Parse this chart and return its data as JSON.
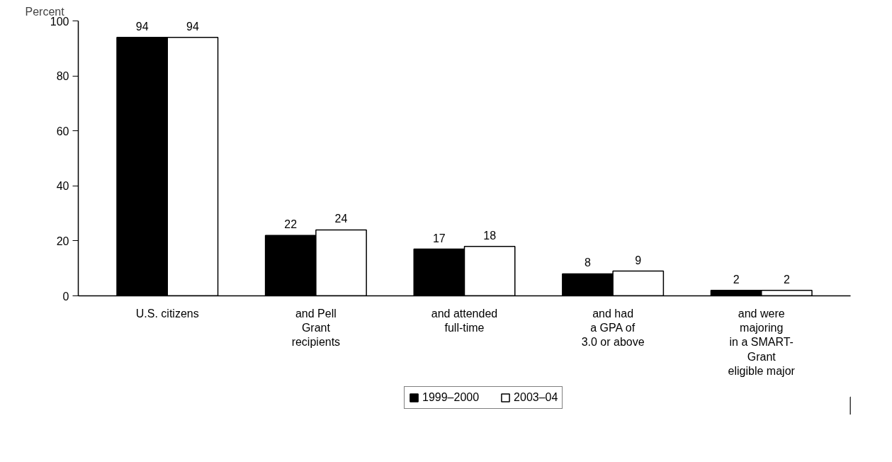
{
  "chart_data": {
    "type": "bar",
    "ylabel": "Percent",
    "categories": [
      "U.S. citizens",
      "and Pell\nGrant\nrecipients",
      "and attended\nfull-time",
      "and had\na GPA of\n3.0 or above",
      "and were\nmajoring\nin a SMART-\nGrant\neligible major"
    ],
    "series": [
      {
        "name": "1999–2000",
        "color": "#000000",
        "values": [
          94,
          22,
          17,
          8,
          2
        ]
      },
      {
        "name": "2003–04",
        "color": "#ffffff",
        "values": [
          94,
          24,
          18,
          9,
          2
        ]
      }
    ],
    "ylim": [
      0,
      100
    ],
    "yticks": [
      0,
      20,
      40,
      60,
      80,
      100
    ],
    "grid": false,
    "legend": "bottom",
    "data_labels": true
  }
}
